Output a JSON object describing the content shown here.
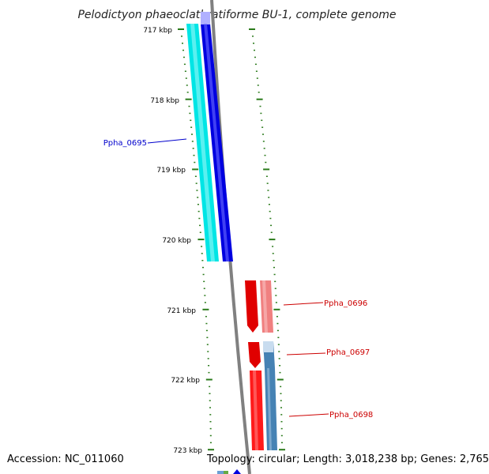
{
  "title": "Pelodictyon phaeoclathratiforme BU-1, complete genome",
  "accession_text": "Accession: NC_011060",
  "topology_text": "Topology: circular; Length: 3,018,238 bp; Genes: 2,765",
  "scale_labels": [
    "717 kbp",
    "718 kbp",
    "719 kbp",
    "720 kbp",
    "721 kbp",
    "722 kbp",
    "723 kbp"
  ],
  "genes": [
    {
      "name": "Ppha_0695",
      "label_color": "#0000cc",
      "colors": [
        "#00e5e5",
        "#0000e0"
      ]
    },
    {
      "name": "Ppha_0696",
      "label_color": "#cc0000",
      "colors": [
        "#e00000",
        "#f08080"
      ]
    },
    {
      "name": "Ppha_0697",
      "label_color": "#cc0000",
      "colors": [
        "#e00000",
        "#4682b4"
      ]
    },
    {
      "name": "Ppha_0698",
      "label_color": "#cc0000",
      "colors": [
        "#ff1a1a",
        "#4682b4"
      ]
    }
  ],
  "colors": {
    "backbone": "#808080",
    "tick": "#2a7a1a",
    "cyan": "#00e5e5",
    "blue": "#0000e0",
    "red": "#e00000",
    "pink": "#f08080",
    "steelblue": "#4682b4"
  }
}
